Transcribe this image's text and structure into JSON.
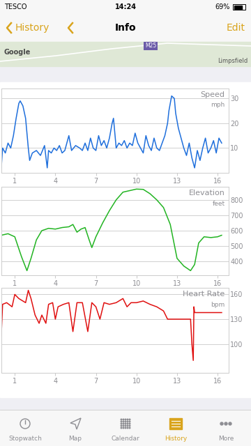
{
  "status_bar": {
    "carrier": "TESCO",
    "time": "14:24",
    "battery": "69%"
  },
  "nav_bar": {
    "back": "History",
    "title": "Info",
    "action": "Edit"
  },
  "map": {
    "labels": [
      "Google",
      "M25",
      "Limpsfield"
    ]
  },
  "chart_data": [
    {
      "type": "line",
      "title": "Speed",
      "y_label": "mph",
      "color": "#1f6fdc",
      "grid": true,
      "x": [
        0,
        0.1,
        0.3,
        0.5,
        0.7,
        0.9,
        1.1,
        1.3,
        1.4,
        1.6,
        1.8,
        2.0,
        2.1,
        2.3,
        2.6,
        2.9,
        3.2,
        3.4,
        3.5,
        3.7,
        3.9,
        4.1,
        4.3,
        4.5,
        4.7,
        4.9,
        5.0,
        5.2,
        5.5,
        5.8,
        6.0,
        6.2,
        6.4,
        6.6,
        6.8,
        7.0,
        7.2,
        7.4,
        7.6,
        7.8,
        8.0,
        8.2,
        8.3,
        8.5,
        8.7,
        8.9,
        9.1,
        9.3,
        9.5,
        9.7,
        9.9,
        10.1,
        10.3,
        10.5,
        10.7,
        10.9,
        11.1,
        11.3,
        11.5,
        11.7,
        11.9,
        12.1,
        12.3,
        12.4,
        12.6,
        12.8,
        12.9,
        13.1,
        13.3,
        13.5,
        13.7,
        13.9,
        14.1,
        14.3,
        14.5,
        14.7,
        14.9,
        15.1,
        15.3,
        15.5,
        15.7,
        15.9,
        16.1,
        16.3
      ],
      "values": [
        2,
        10,
        8,
        12,
        10,
        15,
        22,
        28,
        29,
        27,
        22,
        10,
        5,
        8,
        9,
        7,
        11,
        2,
        9,
        8,
        10,
        9,
        11,
        8,
        9,
        13,
        15,
        9,
        11,
        10,
        9,
        12,
        9,
        14,
        10,
        9,
        15,
        11,
        13,
        10,
        14,
        20,
        22,
        10,
        12,
        11,
        13,
        10,
        12,
        11,
        16,
        12,
        10,
        8,
        15,
        11,
        9,
        14,
        10,
        9,
        12,
        15,
        20,
        25,
        31,
        30,
        24,
        18,
        14,
        10,
        7,
        12,
        6,
        2,
        9,
        5,
        10,
        14,
        8,
        10,
        13,
        8,
        14,
        12
      ],
      "xlim": [
        0,
        16.8
      ],
      "xticks": [
        1,
        4,
        7,
        10,
        13,
        16
      ],
      "ylim": [
        0,
        34
      ],
      "yticks": [
        10,
        20,
        30
      ]
    },
    {
      "type": "line",
      "title": "Elevation",
      "y_label": "feet",
      "color": "#22b422",
      "grid": true,
      "x": [
        0,
        0.5,
        1.0,
        1.5,
        1.9,
        2.2,
        2.6,
        3.0,
        3.5,
        4.0,
        4.5,
        5.0,
        5.3,
        5.6,
        5.9,
        6.2,
        6.5,
        6.7,
        7.0,
        7.5,
        8.0,
        8.5,
        9.0,
        9.5,
        10.0,
        10.5,
        11.0,
        11.5,
        12.0,
        12.5,
        13.0,
        13.5,
        14.0,
        14.3,
        14.6,
        15.0,
        15.5,
        16.0,
        16.3
      ],
      "values": [
        570,
        580,
        560,
        430,
        340,
        420,
        540,
        600,
        615,
        610,
        620,
        625,
        640,
        590,
        610,
        620,
        540,
        490,
        560,
        650,
        730,
        800,
        850,
        860,
        870,
        868,
        840,
        800,
        750,
        640,
        420,
        370,
        340,
        380,
        520,
        560,
        555,
        560,
        570
      ],
      "xlim": [
        0,
        16.8
      ],
      "xticks": [
        1,
        4,
        7,
        10,
        13,
        16
      ],
      "ylim": [
        310,
        885
      ],
      "yticks": [
        400,
        500,
        600,
        700,
        800
      ]
    },
    {
      "type": "line",
      "title": "Heart Rate",
      "y_label": "bpm",
      "color": "#e01010",
      "grid": true,
      "x": [
        0,
        0.1,
        0.4,
        0.8,
        1.0,
        1.3,
        1.8,
        2.0,
        2.2,
        2.5,
        2.8,
        3.0,
        3.3,
        3.5,
        3.8,
        4.0,
        4.2,
        4.6,
        5.0,
        5.3,
        5.6,
        6.0,
        6.4,
        6.7,
        7.0,
        7.3,
        7.6,
        8.0,
        8.5,
        9.0,
        9.3,
        9.6,
        10.0,
        10.5,
        11.0,
        11.5,
        12.0,
        12.3,
        12.5,
        13.0,
        13.5,
        14.0,
        14.1,
        14.2,
        14.25,
        14.3,
        14.6,
        15.0,
        15.5,
        16.0,
        16.3
      ],
      "values": [
        110,
        148,
        150,
        145,
        160,
        155,
        150,
        165,
        155,
        135,
        125,
        135,
        125,
        148,
        150,
        130,
        145,
        148,
        150,
        115,
        150,
        150,
        115,
        150,
        145,
        130,
        150,
        148,
        150,
        155,
        145,
        150,
        150,
        152,
        148,
        145,
        140,
        130,
        130,
        130,
        130,
        130,
        100,
        80,
        145,
        138,
        138,
        138,
        138,
        138,
        138
      ],
      "xlim": [
        0,
        16.8
      ],
      "xticks": [
        1,
        4,
        7,
        10,
        13,
        16
      ],
      "ylim": [
        65,
        168
      ],
      "yticks": [
        100,
        130,
        160
      ]
    }
  ],
  "tab_bar": {
    "items": [
      "Stopwatch",
      "Map",
      "Calendar",
      "History",
      "More"
    ],
    "selected": "History"
  }
}
